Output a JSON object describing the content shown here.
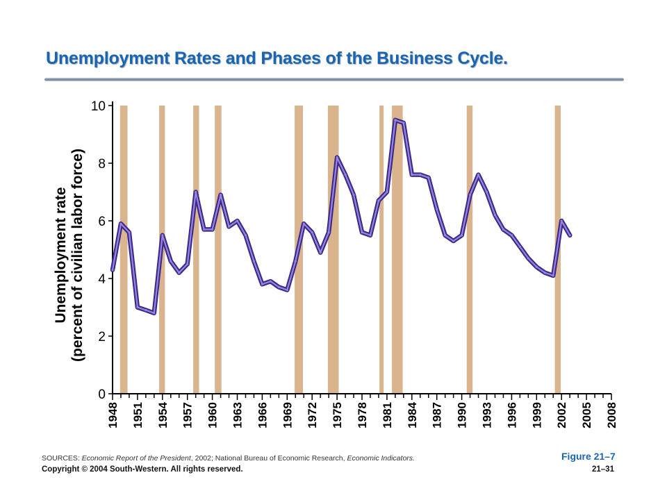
{
  "slide": {
    "title": "Unemployment Rates and Phases of the Business Cycle.",
    "sources_label": "SOURCES:",
    "source_1": "Economic Report of the President",
    "source_1_suffix": ", 2002; National Bureau of Economic Research, ",
    "source_2": "Economic Indicators.",
    "figure_label": "Figure 21–7",
    "copyright": "Copyright © 2004  South-Western.  All rights reserved.",
    "page_number": "21–31"
  },
  "colors": {
    "title": "#1a64b0",
    "line_outer": "#3b2a8c",
    "line_inner": "#9a86dc",
    "recession_shade": "#d9b48f",
    "axis": "#000000"
  },
  "chart_data": {
    "type": "line",
    "ylabel_line1": "Unemployment rate",
    "ylabel_line2": "(percent of civilian labor force)",
    "xlabel": "",
    "xlim": [
      1948,
      2008
    ],
    "ylim": [
      0,
      10
    ],
    "y_ticks": [
      0,
      2,
      4,
      6,
      8,
      10
    ],
    "x_tick_labels": [
      "1948",
      "1951",
      "1954",
      "1957",
      "1960",
      "1963",
      "1966",
      "1969",
      "1972",
      "1975",
      "1978",
      "1981",
      "1984",
      "1987",
      "1990",
      "1993",
      "1996",
      "1999",
      "2002",
      "2005",
      "2008"
    ],
    "x_minor_step": 1,
    "grid": false,
    "legend": "none",
    "series": [
      {
        "x": [
          1948,
          1949,
          1950,
          1951,
          1952,
          1953,
          1954,
          1955,
          1956,
          1957,
          1958,
          1959,
          1960,
          1961,
          1962,
          1963,
          1964,
          1965,
          1966,
          1967,
          1968,
          1969,
          1970,
          1971,
          1972,
          1973,
          1974,
          1975,
          1976,
          1977,
          1978,
          1979,
          1980,
          1981,
          1982,
          1983,
          1984,
          1985,
          1986,
          1987,
          1988,
          1989,
          1990,
          1991,
          1992,
          1993,
          1994,
          1995,
          1996,
          1997,
          1998,
          1999,
          2000,
          2001,
          2002,
          2003
        ],
        "values": [
          4.3,
          5.9,
          5.6,
          3.0,
          2.9,
          2.8,
          5.5,
          4.6,
          4.2,
          4.5,
          7.0,
          5.7,
          5.7,
          6.9,
          5.8,
          6.0,
          5.5,
          4.6,
          3.8,
          3.9,
          3.7,
          3.6,
          4.6,
          5.9,
          5.6,
          4.9,
          5.6,
          8.2,
          7.6,
          6.9,
          5.6,
          5.5,
          6.7,
          7.0,
          9.5,
          9.4,
          7.6,
          7.6,
          7.5,
          6.4,
          5.5,
          5.3,
          5.5,
          6.9,
          7.6,
          7.0,
          6.2,
          5.7,
          5.5,
          5.1,
          4.7,
          4.4,
          4.2,
          4.1,
          6.0,
          5.5
        ]
      }
    ],
    "recession_periods": [
      [
        1948.9,
        1949.8
      ],
      [
        1953.6,
        1954.3
      ],
      [
        1957.7,
        1958.4
      ],
      [
        1960.3,
        1961.1
      ],
      [
        1969.9,
        1970.9
      ],
      [
        1973.9,
        1975.2
      ],
      [
        1980.1,
        1980.6
      ],
      [
        1981.6,
        1982.9
      ],
      [
        1990.6,
        1991.3
      ],
      [
        2001.2,
        2001.9
      ]
    ]
  }
}
